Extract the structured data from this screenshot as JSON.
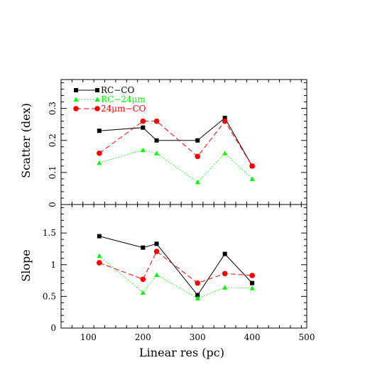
{
  "chart_data": [
    {
      "type": "line",
      "panel": "top",
      "ylabel": "Scatter (dex)",
      "xlim": [
        50,
        500
      ],
      "ylim": [
        0,
        0.39
      ],
      "yticks": [
        0,
        0.1,
        0.2,
        0.3
      ],
      "ytick_labels": [
        "0",
        "0.1",
        "0.2",
        "0.3"
      ],
      "legend_position": "top-left",
      "series": [
        {
          "name": "RC−CO",
          "color": "#000000",
          "marker": "square",
          "line": "solid",
          "x": [
            120,
            200,
            225,
            300,
            350,
            400
          ],
          "y": [
            0.23,
            0.24,
            0.2,
            0.2,
            0.27,
            0.12
          ]
        },
        {
          "name": "RC−24μm",
          "color": "#00ff00",
          "marker": "triangle",
          "line": "dotted",
          "x": [
            120,
            200,
            225,
            300,
            350,
            400
          ],
          "y": [
            0.13,
            0.17,
            0.16,
            0.07,
            0.16,
            0.08
          ]
        },
        {
          "name": "24μm−CO",
          "color": "#ff0000",
          "marker": "circle",
          "line": "dashed",
          "x": [
            120,
            200,
            225,
            300,
            350,
            400
          ],
          "y": [
            0.16,
            0.26,
            0.26,
            0.15,
            0.26,
            0.12
          ]
        }
      ]
    },
    {
      "type": "line",
      "panel": "bottom",
      "ylabel": "Slope",
      "xlabel": "Linear res (pc)",
      "xlim": [
        50,
        500
      ],
      "ylim": [
        0,
        1.95
      ],
      "xticks": [
        100,
        200,
        300,
        400,
        500
      ],
      "xtick_labels": [
        "100",
        "200",
        "300",
        "400",
        "500"
      ],
      "yticks": [
        0,
        0.5,
        1,
        1.5
      ],
      "ytick_labels": [
        "0",
        "0.5",
        "1",
        "1.5"
      ],
      "series": [
        {
          "color": "#000000",
          "marker": "square",
          "line": "solid",
          "x": [
            120,
            200,
            225,
            300,
            350,
            400
          ],
          "y": [
            1.45,
            1.27,
            1.33,
            0.52,
            1.17,
            0.71
          ]
        },
        {
          "color": "#00ff00",
          "marker": "triangle",
          "line": "dotted",
          "x": [
            120,
            200,
            225,
            300,
            350,
            400
          ],
          "y": [
            1.14,
            0.56,
            0.84,
            0.47,
            0.64,
            0.63
          ]
        },
        {
          "color": "#ff0000",
          "marker": "circle",
          "line": "dashed",
          "x": [
            120,
            200,
            225,
            300,
            350,
            400
          ],
          "y": [
            1.03,
            0.77,
            1.21,
            0.71,
            0.86,
            0.83
          ]
        }
      ]
    }
  ]
}
